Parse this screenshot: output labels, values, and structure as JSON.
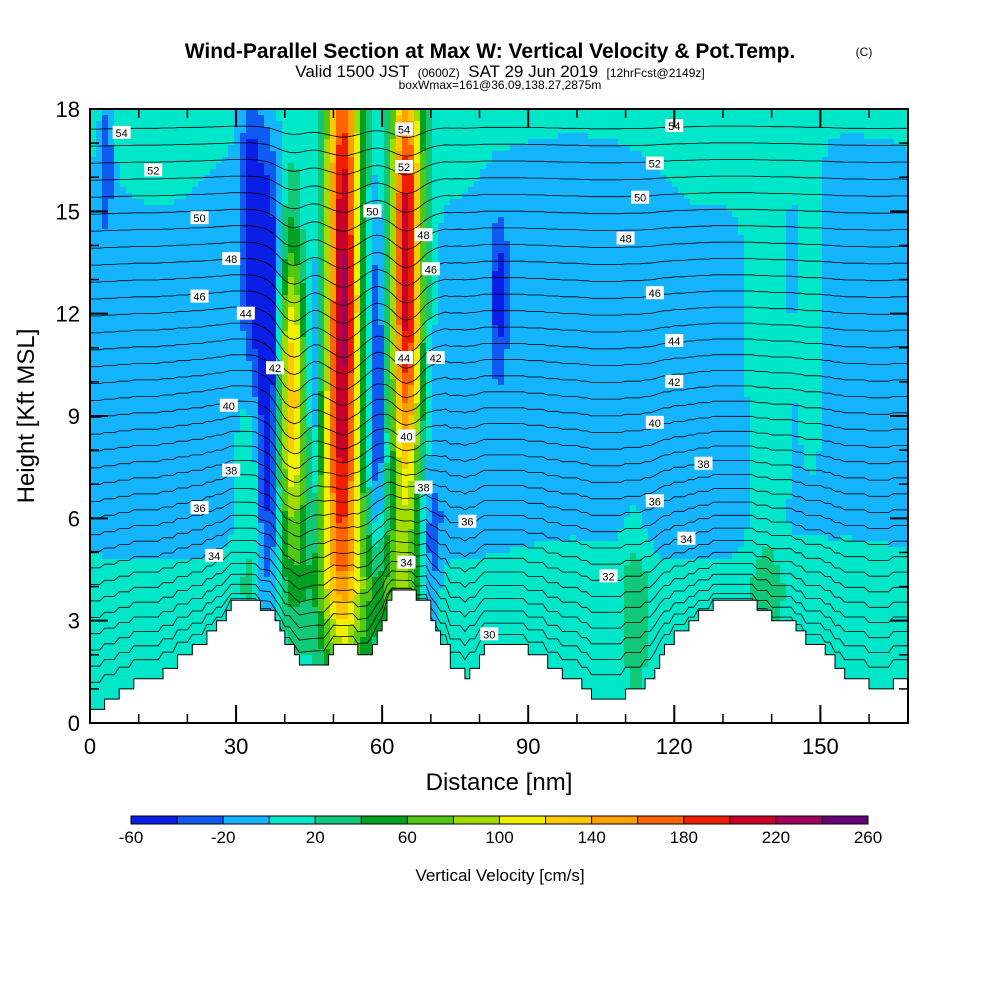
{
  "title": {
    "main": "Wind-Parallel Section at Max W: Vertical Velocity & Pot.Temp.",
    "copyright": "(C)",
    "valid_prefix": "Valid 1500 JST",
    "valid_z": "(0600Z)",
    "valid_date": "SAT 29 Jun 2019",
    "forecast": "[12hrFcst@2149z]",
    "boxwmax": "boxWmax=161@36.09,138.27,2875m"
  },
  "chart_data": {
    "type": "heatmap",
    "xlabel": "Distance [nm]",
    "ylabel": "Height [Kft MSL]",
    "xlim": [
      0,
      168
    ],
    "ylim": [
      0,
      18
    ],
    "xticks": [
      0,
      30,
      60,
      90,
      120,
      150
    ],
    "yticks": [
      0,
      3,
      6,
      9,
      12,
      15,
      18
    ],
    "colorbar": {
      "title": "Vertical Velocity [cm/s]",
      "tick_labels": [
        "-60",
        "-20",
        "20",
        "60",
        "100",
        "140",
        "180",
        "220",
        "260"
      ],
      "levels": [
        -60,
        -40,
        -20,
        0,
        20,
        40,
        60,
        80,
        100,
        120,
        140,
        160,
        180,
        200,
        220,
        240,
        260
      ],
      "colors": [
        "#0a1ee6",
        "#0f5af0",
        "#14b4ff",
        "#00e6c8",
        "#10c878",
        "#00a020",
        "#50c814",
        "#a0dc00",
        "#f0f000",
        "#ffc800",
        "#ffa000",
        "#ff6400",
        "#f01e00",
        "#c80028",
        "#a0005a",
        "#640078"
      ]
    },
    "vertical_velocity_cm_s": {
      "background_by_height": [
        {
          "h": 0.0,
          "w": 10
        },
        {
          "h": 4.0,
          "w": 10
        },
        {
          "h": 6.0,
          "w": -10
        },
        {
          "h": 14.0,
          "w": -10
        },
        {
          "h": 18.0,
          "w": 5
        }
      ],
      "updrafts": [
        {
          "x": 52,
          "h": 11.0,
          "dx": 2.6,
          "dh": 5.5,
          "w": 215
        },
        {
          "x": 52,
          "h": 17.0,
          "dx": 2.5,
          "dh": 3.5,
          "w": 70
        },
        {
          "x": 65,
          "h": 11.5,
          "dx": 2.3,
          "dh": 4.5,
          "w": 190
        },
        {
          "x": 65,
          "h": 16.5,
          "dx": 2.2,
          "dh": 3.0,
          "w": 80
        },
        {
          "x": 41.5,
          "h": 10.0,
          "dx": 2.0,
          "dh": 3.5,
          "w": 140
        },
        {
          "x": 49,
          "h": 5.5,
          "dx": 4.0,
          "dh": 2.5,
          "w": 55
        },
        {
          "x": 60,
          "h": 4.0,
          "dx": 5.0,
          "dh": 2.0,
          "w": 45
        },
        {
          "x": 35,
          "h": 7.0,
          "dx": 3.0,
          "dh": 3.0,
          "w": 40
        },
        {
          "x": 139,
          "h": 9.5,
          "dx": 3.0,
          "dh": 6.0,
          "w": 30
        },
        {
          "x": 148,
          "h": 12.5,
          "dx": 2.0,
          "dh": 3.0,
          "w": 25
        },
        {
          "x": 112,
          "h": 3.5,
          "dx": 2.0,
          "dh": 2.0,
          "w": 25
        }
      ],
      "downdrafts": [
        {
          "x": 36.5,
          "h": 9.0,
          "dx": 1.8,
          "dh": 5.0,
          "w": -85
        },
        {
          "x": 33,
          "h": 15.0,
          "dx": 1.5,
          "dh": 3.0,
          "w": -50
        },
        {
          "x": 84,
          "h": 12.5,
          "dx": 1.2,
          "dh": 1.5,
          "w": -45
        },
        {
          "x": 46,
          "h": 8.5,
          "dx": 1.0,
          "dh": 3.0,
          "w": -40
        },
        {
          "x": 59,
          "h": 9.5,
          "dx": 1.0,
          "dh": 4.0,
          "w": -45
        },
        {
          "x": 3.5,
          "h": 16.5,
          "dx": 0.8,
          "dh": 1.5,
          "w": -40
        },
        {
          "x": 70,
          "h": 4.5,
          "dx": 1.5,
          "dh": 1.5,
          "w": -35
        }
      ]
    },
    "terrain_kft": [
      [
        0,
        0.4
      ],
      [
        3,
        0.4
      ],
      [
        3,
        0.7
      ],
      [
        6,
        0.7
      ],
      [
        6,
        1.0
      ],
      [
        9,
        1.0
      ],
      [
        9,
        1.3
      ],
      [
        15,
        1.3
      ],
      [
        15,
        1.6
      ],
      [
        18,
        1.6
      ],
      [
        18,
        2.0
      ],
      [
        21,
        2.0
      ],
      [
        21,
        2.3
      ],
      [
        24,
        2.3
      ],
      [
        24,
        2.7
      ],
      [
        26,
        2.7
      ],
      [
        26,
        3.0
      ],
      [
        28,
        3.0
      ],
      [
        28,
        3.3
      ],
      [
        29,
        3.3
      ],
      [
        29,
        3.6
      ],
      [
        35,
        3.6
      ],
      [
        35,
        3.3
      ],
      [
        38,
        3.3
      ],
      [
        38,
        3.0
      ],
      [
        39,
        3.0
      ],
      [
        39,
        2.7
      ],
      [
        40,
        2.7
      ],
      [
        40,
        2.3
      ],
      [
        42,
        2.3
      ],
      [
        42,
        2.0
      ],
      [
        43,
        2.0
      ],
      [
        43,
        1.7
      ],
      [
        49,
        1.7
      ],
      [
        49,
        2.0
      ],
      [
        50,
        2.0
      ],
      [
        50,
        2.3
      ],
      [
        55,
        2.3
      ],
      [
        55,
        2.0
      ],
      [
        58,
        2.0
      ],
      [
        58,
        2.3
      ],
      [
        59,
        2.3
      ],
      [
        59,
        2.7
      ],
      [
        60,
        2.7
      ],
      [
        60,
        3.0
      ],
      [
        61,
        3.0
      ],
      [
        61,
        3.6
      ],
      [
        62,
        3.6
      ],
      [
        62,
        3.9
      ],
      [
        67,
        3.9
      ],
      [
        67,
        3.6
      ],
      [
        70,
        3.6
      ],
      [
        70,
        3.0
      ],
      [
        71,
        3.0
      ],
      [
        71,
        2.7
      ],
      [
        72,
        2.7
      ],
      [
        72,
        2.3
      ],
      [
        74,
        2.3
      ],
      [
        74,
        1.6
      ],
      [
        77,
        1.6
      ],
      [
        77,
        1.3
      ],
      [
        78,
        1.3
      ],
      [
        78,
        1.6
      ],
      [
        80,
        1.6
      ],
      [
        80,
        2.0
      ],
      [
        81,
        2.0
      ],
      [
        81,
        2.3
      ],
      [
        90,
        2.3
      ],
      [
        90,
        2.0
      ],
      [
        94,
        2.0
      ],
      [
        94,
        1.6
      ],
      [
        97,
        1.6
      ],
      [
        97,
        1.3
      ],
      [
        101,
        1.3
      ],
      [
        101,
        1.0
      ],
      [
        103,
        1.0
      ],
      [
        103,
        0.7
      ],
      [
        110,
        0.7
      ],
      [
        110,
        1.0
      ],
      [
        114,
        1.0
      ],
      [
        114,
        1.3
      ],
      [
        116,
        1.3
      ],
      [
        116,
        1.6
      ],
      [
        117,
        1.6
      ],
      [
        117,
        2.0
      ],
      [
        118,
        2.0
      ],
      [
        118,
        2.3
      ],
      [
        120,
        2.3
      ],
      [
        120,
        2.7
      ],
      [
        123,
        2.7
      ],
      [
        123,
        3.0
      ],
      [
        125,
        3.0
      ],
      [
        125,
        3.3
      ],
      [
        128,
        3.3
      ],
      [
        128,
        3.6
      ],
      [
        137,
        3.6
      ],
      [
        137,
        3.3
      ],
      [
        140,
        3.3
      ],
      [
        140,
        3.0
      ],
      [
        145,
        3.0
      ],
      [
        145,
        2.7
      ],
      [
        147,
        2.7
      ],
      [
        147,
        2.3
      ],
      [
        151,
        2.3
      ],
      [
        151,
        2.0
      ],
      [
        153,
        2.0
      ],
      [
        153,
        1.6
      ],
      [
        155,
        1.6
      ],
      [
        155,
        1.3
      ],
      [
        160,
        1.3
      ],
      [
        160,
        1.0
      ],
      [
        165,
        1.0
      ],
      [
        165,
        1.3
      ],
      [
        168,
        1.3
      ]
    ],
    "potential_temperature_labels": [
      {
        "text": "54",
        "x": 6.5,
        "h": 17.3
      },
      {
        "text": "52",
        "x": 13,
        "h": 16.2
      },
      {
        "text": "50",
        "x": 22.5,
        "h": 14.8
      },
      {
        "text": "48",
        "x": 29,
        "h": 13.6
      },
      {
        "text": "46",
        "x": 22.5,
        "h": 12.5
      },
      {
        "text": "44",
        "x": 32,
        "h": 12.0
      },
      {
        "text": "42",
        "x": 38,
        "h": 10.4
      },
      {
        "text": "40",
        "x": 28.5,
        "h": 9.3
      },
      {
        "text": "38",
        "x": 29,
        "h": 7.4
      },
      {
        "text": "36",
        "x": 22.5,
        "h": 6.3
      },
      {
        "text": "34",
        "x": 25.5,
        "h": 4.9
      },
      {
        "text": "54",
        "x": 64.5,
        "h": 17.4
      },
      {
        "text": "52",
        "x": 64.5,
        "h": 16.3
      },
      {
        "text": "50",
        "x": 58,
        "h": 15.0
      },
      {
        "text": "48",
        "x": 68.5,
        "h": 14.3
      },
      {
        "text": "46",
        "x": 70,
        "h": 13.3
      },
      {
        "text": "44",
        "x": 64.5,
        "h": 10.7
      },
      {
        "text": "42",
        "x": 71,
        "h": 10.7
      },
      {
        "text": "40",
        "x": 65,
        "h": 8.4
      },
      {
        "text": "38",
        "x": 68.5,
        "h": 6.9
      },
      {
        "text": "36",
        "x": 77.5,
        "h": 5.9
      },
      {
        "text": "34",
        "x": 65,
        "h": 4.7
      },
      {
        "text": "30",
        "x": 82,
        "h": 2.6
      },
      {
        "text": "54",
        "x": 120,
        "h": 17.5
      },
      {
        "text": "52",
        "x": 116,
        "h": 16.4
      },
      {
        "text": "50",
        "x": 113,
        "h": 15.4
      },
      {
        "text": "48",
        "x": 110,
        "h": 14.2
      },
      {
        "text": "46",
        "x": 116,
        "h": 12.6
      },
      {
        "text": "44",
        "x": 120,
        "h": 11.2
      },
      {
        "text": "42",
        "x": 120,
        "h": 10.0
      },
      {
        "text": "40",
        "x": 116,
        "h": 8.8
      },
      {
        "text": "38",
        "x": 126,
        "h": 7.6
      },
      {
        "text": "36",
        "x": 116,
        "h": 6.5
      },
      {
        "text": "34",
        "x": 122.5,
        "h": 5.4
      },
      {
        "text": "32",
        "x": 106.5,
        "h": 4.3
      }
    ]
  }
}
